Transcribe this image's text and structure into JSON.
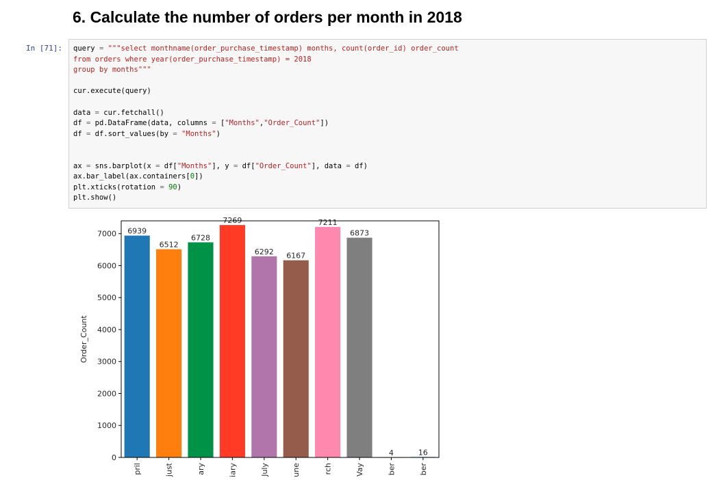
{
  "notebook": {
    "heading": "6. Calculate the number of orders per month in 2018",
    "cell_prompt": "In [71]:",
    "code_lines": [
      [
        {
          "t": "query ",
          "c": ""
        },
        {
          "t": "=",
          "c": "o"
        },
        {
          "t": " ",
          "c": ""
        },
        {
          "t": "\"\"\"select monthname(order_purchase_timestamp) months, count(order_id) order_count",
          "c": "s"
        }
      ],
      [
        {
          "t": "from orders where year(order_purchase_timestamp) = 2018",
          "c": "s"
        }
      ],
      [
        {
          "t": "group by months\"\"\"",
          "c": "s"
        }
      ],
      [],
      [
        {
          "t": "cur.execute(query)",
          "c": ""
        }
      ],
      [],
      [
        {
          "t": "data ",
          "c": ""
        },
        {
          "t": "=",
          "c": "o"
        },
        {
          "t": " cur.fetchall()",
          "c": ""
        }
      ],
      [
        {
          "t": "df ",
          "c": ""
        },
        {
          "t": "=",
          "c": "o"
        },
        {
          "t": " pd.DataFrame(data, columns ",
          "c": ""
        },
        {
          "t": "=",
          "c": "o"
        },
        {
          "t": " [",
          "c": ""
        },
        {
          "t": "\"Months\"",
          "c": "s"
        },
        {
          "t": ",",
          "c": ""
        },
        {
          "t": "\"Order_Count\"",
          "c": "s"
        },
        {
          "t": "])",
          "c": ""
        }
      ],
      [
        {
          "t": "df ",
          "c": ""
        },
        {
          "t": "=",
          "c": "o"
        },
        {
          "t": " df.sort_values(by ",
          "c": ""
        },
        {
          "t": "=",
          "c": "o"
        },
        {
          "t": " ",
          "c": ""
        },
        {
          "t": "\"Months\"",
          "c": "s"
        },
        {
          "t": ")",
          "c": ""
        }
      ],
      [],
      [],
      [
        {
          "t": "ax ",
          "c": ""
        },
        {
          "t": "=",
          "c": "o"
        },
        {
          "t": " sns.barplot(x ",
          "c": ""
        },
        {
          "t": "=",
          "c": "o"
        },
        {
          "t": " df[",
          "c": ""
        },
        {
          "t": "\"Months\"",
          "c": "s"
        },
        {
          "t": "], y ",
          "c": ""
        },
        {
          "t": "=",
          "c": "o"
        },
        {
          "t": " df[",
          "c": ""
        },
        {
          "t": "\"Order_Count\"",
          "c": "s"
        },
        {
          "t": "], data ",
          "c": ""
        },
        {
          "t": "=",
          "c": "o"
        },
        {
          "t": " df)",
          "c": ""
        }
      ],
      [
        {
          "t": "ax.bar_label(ax.containers[",
          "c": ""
        },
        {
          "t": "0",
          "c": "n"
        },
        {
          "t": "])",
          "c": ""
        }
      ],
      [
        {
          "t": "plt.xticks(rotation ",
          "c": ""
        },
        {
          "t": "=",
          "c": "o"
        },
        {
          "t": " ",
          "c": ""
        },
        {
          "t": "90",
          "c": "n"
        },
        {
          "t": ")",
          "c": ""
        }
      ],
      [
        {
          "t": "plt.show()",
          "c": ""
        }
      ]
    ]
  },
  "chart_data": {
    "type": "bar",
    "categories": [
      "pril",
      "just",
      "ary",
      "iary",
      "July",
      "une",
      "rch",
      "Vay",
      "ber",
      "ber"
    ],
    "values": [
      6939,
      6512,
      6728,
      7269,
      6292,
      6167,
      7211,
      6873,
      4,
      16
    ],
    "colors": [
      "#1f77b4",
      "#ff7f0e",
      "#009247",
      "#ff3a25",
      "#b174ab",
      "#955c4b",
      "#ff88ae",
      "#7f7f7f",
      "#bcbd22",
      "#17becf"
    ],
    "xlabel": "",
    "ylabel": "Order_Count",
    "ylim": [
      0,
      7400
    ],
    "yticks": [
      0,
      1000,
      2000,
      3000,
      4000,
      5000,
      6000,
      7000
    ],
    "tick_label_rotation": 90,
    "bar_labels": true,
    "grid": false
  }
}
